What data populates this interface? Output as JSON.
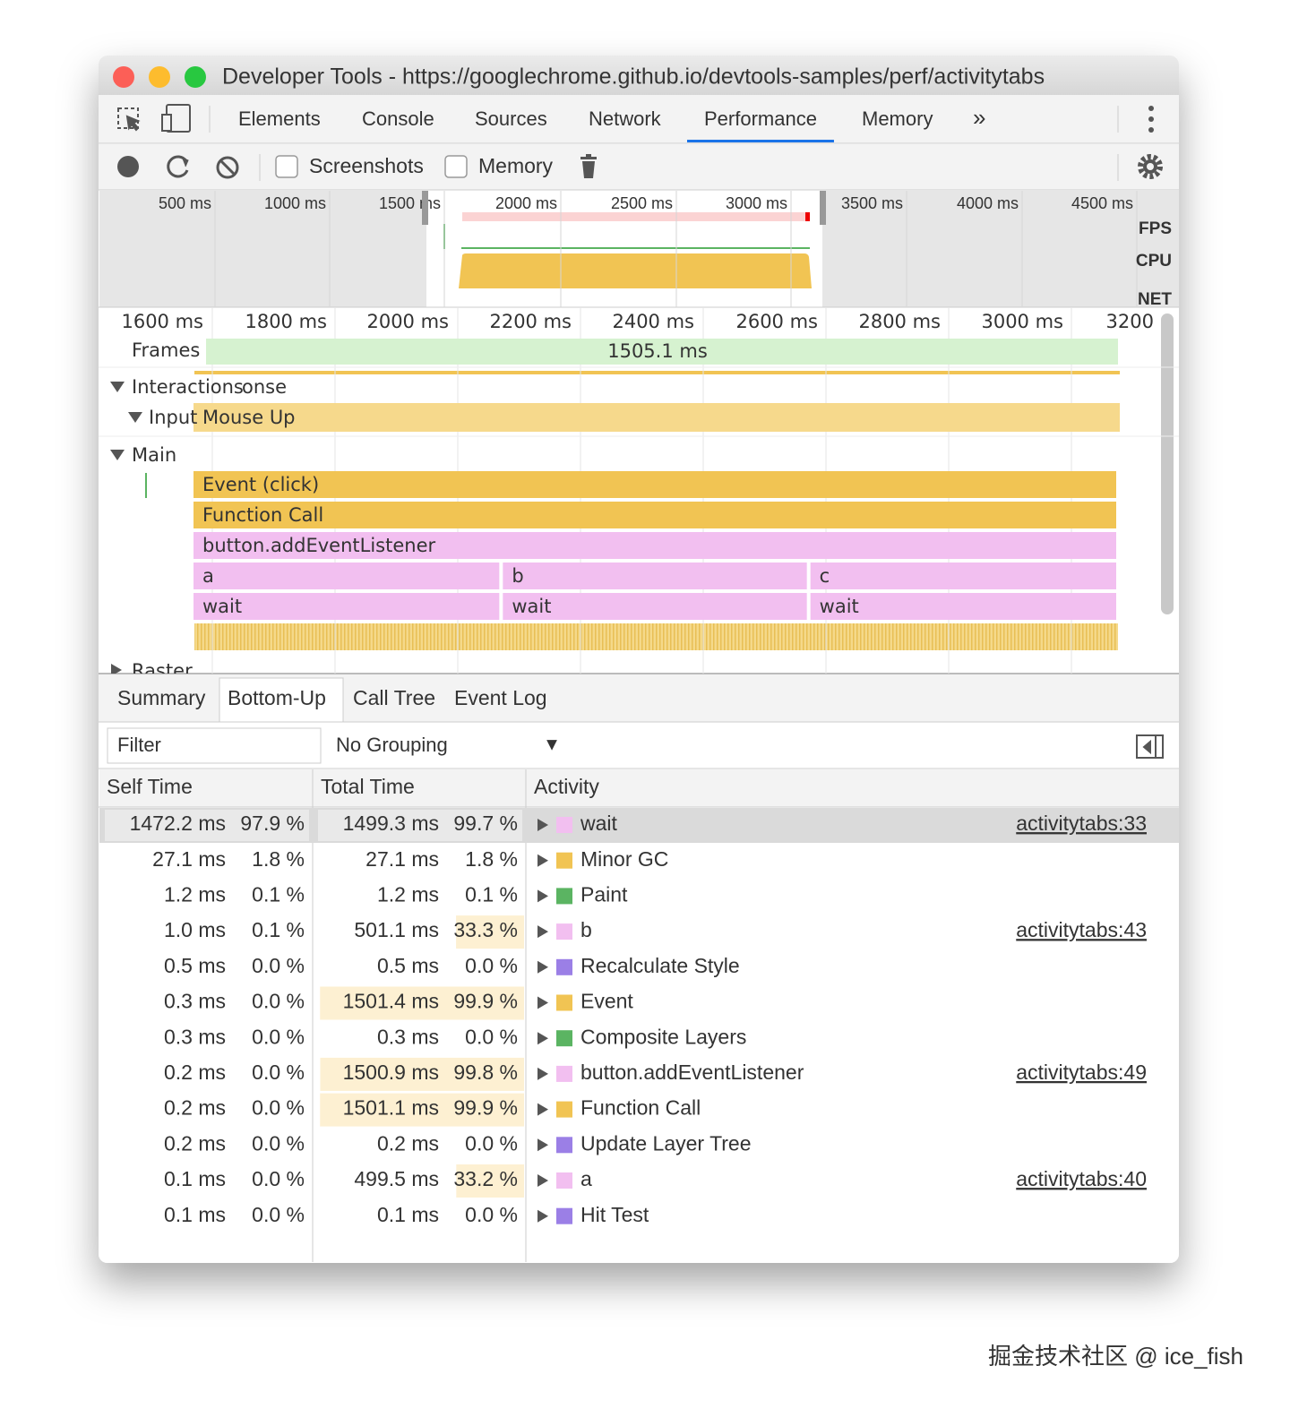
{
  "window": {
    "title": "Developer Tools - https://googlechrome.github.io/devtools-samples/perf/activitytabs"
  },
  "tabs": {
    "items": [
      "Elements",
      "Console",
      "Sources",
      "Network",
      "Performance",
      "Memory"
    ],
    "active": 4
  },
  "toolbar": {
    "checkboxes": [
      "Screenshots",
      "Memory"
    ]
  },
  "overview": {
    "ticks": [
      "500 ms",
      "1000 ms",
      "1500 ms",
      "2000 ms",
      "2500 ms",
      "3000 ms",
      "3500 ms",
      "4000 ms",
      "4500 ms"
    ],
    "tracks": [
      "FPS",
      "CPU",
      "NET"
    ]
  },
  "timeline": {
    "ticks": [
      "1600 ms",
      "1800 ms",
      "2000 ms",
      "2200 ms",
      "2400 ms",
      "2600 ms",
      "2800 ms",
      "3000 ms",
      "3200"
    ],
    "frames": {
      "label": "Frames",
      "duration": "1505.1 ms"
    },
    "interactions": {
      "label": "Interactions",
      "overlap": "onse",
      "input_label": "Input",
      "event": "Mouse Up"
    },
    "main": {
      "label": "Main",
      "flame": [
        {
          "names": [
            "Event (click)"
          ],
          "color": "#f1c453"
        },
        {
          "names": [
            "Function Call"
          ],
          "color": "#f1c453"
        },
        {
          "names": [
            "button.addEventListener"
          ],
          "color": "#f2bff0"
        },
        {
          "names": [
            "a",
            "b",
            "c"
          ],
          "color": "#f2bff0"
        },
        {
          "names": [
            "wait",
            "wait",
            "wait"
          ],
          "color": "#f2bff0"
        }
      ]
    },
    "raster": "Raster"
  },
  "bottom_tabs": {
    "items": [
      "Summary",
      "Bottom-Up",
      "Call Tree",
      "Event Log"
    ],
    "active": 1
  },
  "filter": {
    "placeholder": "Filter",
    "grouping": "No Grouping"
  },
  "table": {
    "columns": [
      "Self Time",
      "Total Time",
      "Activity"
    ],
    "selected": 0,
    "rows": [
      {
        "self": "1472.2 ms",
        "self_pct": "97.9 %",
        "total": "1499.3 ms",
        "total_pct": "99.7 %",
        "activity": "wait",
        "color": "#f2bff0",
        "source": "activitytabs:33",
        "heat": false
      },
      {
        "self": "27.1 ms",
        "self_pct": "1.8 %",
        "total": "27.1 ms",
        "total_pct": "1.8 %",
        "activity": "Minor GC",
        "color": "#f1c453",
        "heat": false
      },
      {
        "self": "1.2 ms",
        "self_pct": "0.1 %",
        "total": "1.2 ms",
        "total_pct": "0.1 %",
        "activity": "Paint",
        "color": "#5bb462",
        "heat": false
      },
      {
        "self": "1.0 ms",
        "self_pct": "0.1 %",
        "total": "501.1 ms",
        "total_pct": "33.3 %",
        "activity": "b",
        "color": "#f2bff0",
        "source": "activitytabs:43",
        "heat": true
      },
      {
        "self": "0.5 ms",
        "self_pct": "0.0 %",
        "total": "0.5 ms",
        "total_pct": "0.0 %",
        "activity": "Recalculate Style",
        "color": "#9b7fe6",
        "heat": false
      },
      {
        "self": "0.3 ms",
        "self_pct": "0.0 %",
        "total": "1501.4 ms",
        "total_pct": "99.9 %",
        "activity": "Event",
        "color": "#f1c453",
        "heat": true
      },
      {
        "self": "0.3 ms",
        "self_pct": "0.0 %",
        "total": "0.3 ms",
        "total_pct": "0.0 %",
        "activity": "Composite Layers",
        "color": "#5bb462",
        "heat": false
      },
      {
        "self": "0.2 ms",
        "self_pct": "0.0 %",
        "total": "1500.9 ms",
        "total_pct": "99.8 %",
        "activity": "button.addEventListener",
        "color": "#f2bff0",
        "source": "activitytabs:49",
        "heat": true
      },
      {
        "self": "0.2 ms",
        "self_pct": "0.0 %",
        "total": "1501.1 ms",
        "total_pct": "99.9 %",
        "activity": "Function Call",
        "color": "#f1c453",
        "heat": true
      },
      {
        "self": "0.2 ms",
        "self_pct": "0.0 %",
        "total": "0.2 ms",
        "total_pct": "0.0 %",
        "activity": "Update Layer Tree",
        "color": "#9b7fe6",
        "heat": false
      },
      {
        "self": "0.1 ms",
        "self_pct": "0.0 %",
        "total": "499.5 ms",
        "total_pct": "33.2 %",
        "activity": "a",
        "color": "#f2bff0",
        "source": "activitytabs:40",
        "heat": true
      },
      {
        "self": "0.1 ms",
        "self_pct": "0.0 %",
        "total": "0.1 ms",
        "total_pct": "0.0 %",
        "activity": "Hit Test",
        "color": "#9b7fe6",
        "heat": false
      }
    ]
  },
  "watermark": "掘金技术社区 @ ice_fish"
}
